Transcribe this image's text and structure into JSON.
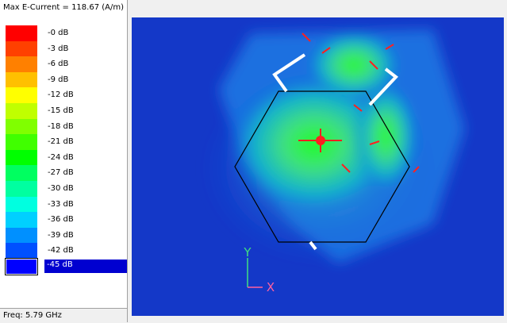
{
  "header": {
    "title": "Max E-Current = 118.67 (A/m)"
  },
  "legend": {
    "items": [
      {
        "label": "-0 dB",
        "color": "#ff0000"
      },
      {
        "label": "-3 dB",
        "color": "#ff4000"
      },
      {
        "label": "-6 dB",
        "color": "#ff8000"
      },
      {
        "label": "-9 dB",
        "color": "#ffc000"
      },
      {
        "label": "-12 dB",
        "color": "#ffff00"
      },
      {
        "label": "-15 dB",
        "color": "#c0ff00"
      },
      {
        "label": "-18 dB",
        "color": "#80ff00"
      },
      {
        "label": "-21 dB",
        "color": "#40ff00"
      },
      {
        "label": "-24 dB",
        "color": "#00ff00"
      },
      {
        "label": "-27 dB",
        "color": "#00ff60"
      },
      {
        "label": "-30 dB",
        "color": "#00ffa0"
      },
      {
        "label": "-33 dB",
        "color": "#00ffe0"
      },
      {
        "label": "-36 dB",
        "color": "#00d0ff"
      },
      {
        "label": "-39 dB",
        "color": "#0090ff"
      },
      {
        "label": "-42 dB",
        "color": "#0050ff"
      },
      {
        "label": "-45 dB",
        "color": "#0000ff"
      }
    ],
    "selected": 15
  },
  "footer": {
    "frequency": "Freq: 5.79 GHz"
  },
  "axes": {
    "y_label": "Y",
    "x_label": "X"
  }
}
